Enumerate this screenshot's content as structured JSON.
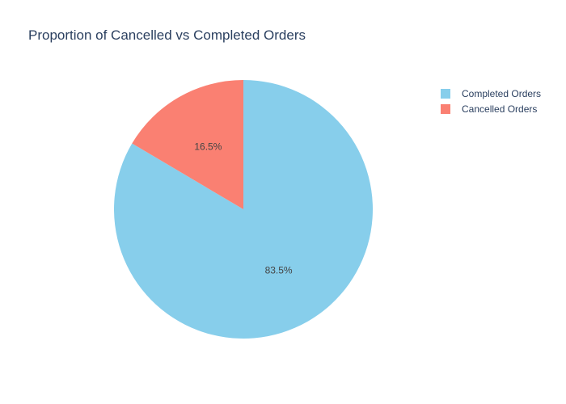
{
  "chart_data": {
    "type": "pie",
    "title": "Proportion of Cancelled vs Completed Orders",
    "labels": [
      "Completed Orders",
      "Cancelled Orders"
    ],
    "values": [
      83.5,
      16.5
    ],
    "text_labels": [
      "83.5%",
      "16.5%"
    ],
    "colors": [
      "#87CEEB",
      "#FA8072"
    ],
    "direction": "clockwise",
    "start_angle": "top",
    "legend_position": "top-right"
  }
}
